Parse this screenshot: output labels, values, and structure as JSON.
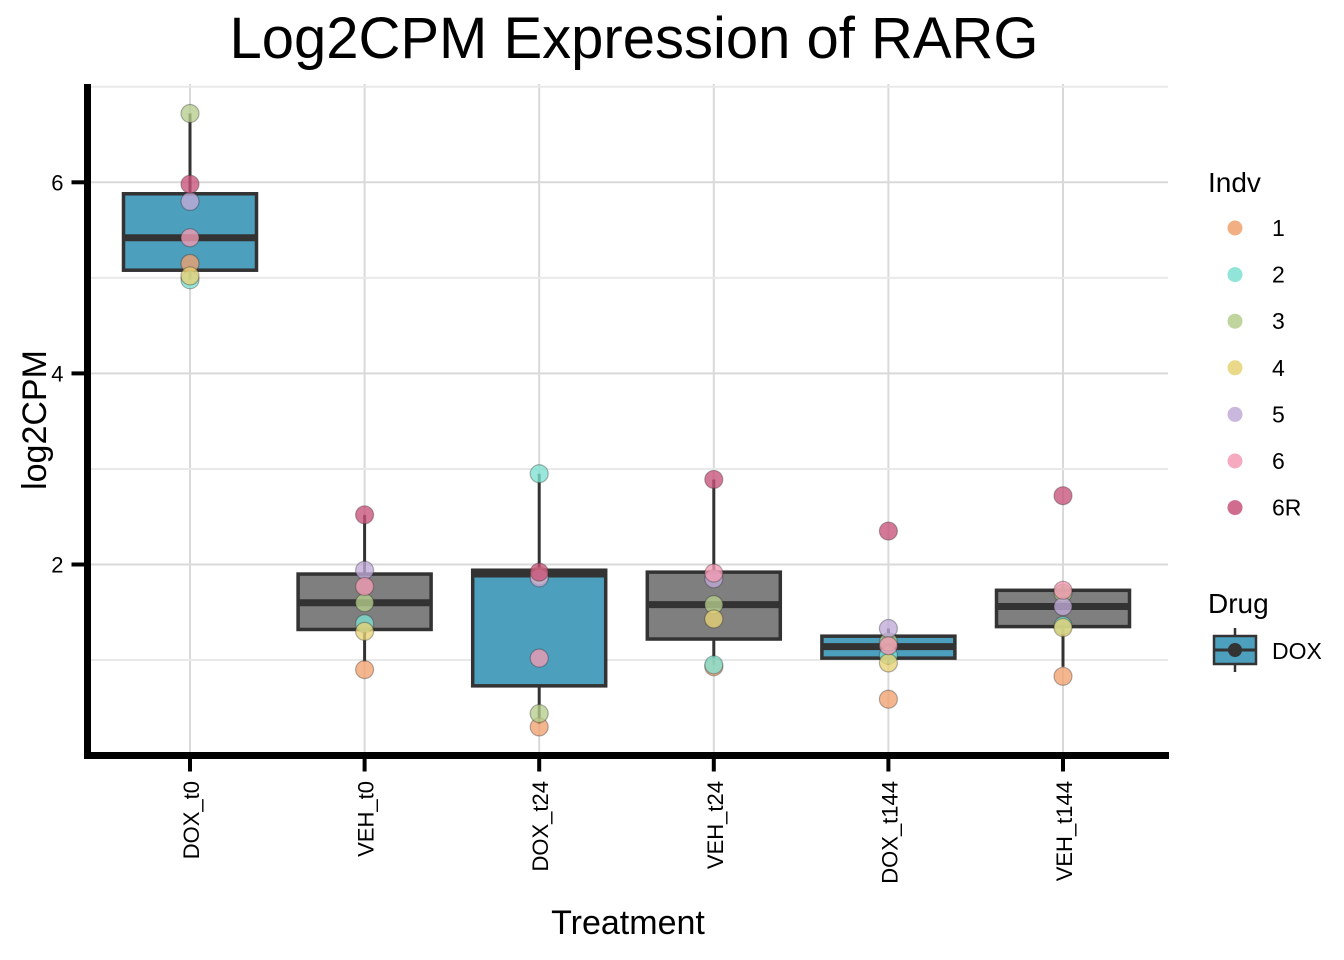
{
  "chart_data": {
    "type": "boxplot",
    "title": "Log2CPM Expression of RARG",
    "xlabel": "Treatment",
    "ylabel": "log2CPM",
    "categories": [
      "DOX_t0",
      "VEH_t0",
      "DOX_t24",
      "VEH_t24",
      "DOX_t144",
      "VEH_t144"
    ],
    "y_major_ticks": [
      2,
      4,
      6
    ],
    "y_minor_gridlines": [
      1,
      3,
      5,
      7
    ],
    "ylim": [
      0,
      7.05
    ],
    "grid": true,
    "legend_position": "right",
    "colors": {
      "box_border": "#333333",
      "grid_major": "#D9D9D9",
      "grid_minor": "#E9E9E9",
      "axis_line": "#000000",
      "drug": {
        "DOX": "#4D9FBE",
        "VEH": "#7F7F7F"
      },
      "indv": {
        "1": "#F1A16E",
        "2": "#7EE1D1",
        "3": "#B5CD8C",
        "4": "#E7D276",
        "5": "#C1AAD8",
        "6": "#F39BB4",
        "6R": "#C8527A"
      }
    },
    "boxes": [
      {
        "category": "DOX_t0",
        "drug": "DOX",
        "whisker_low": 4.98,
        "q1": 5.08,
        "median": 5.42,
        "q3": 5.88,
        "whisker_high": 6.72,
        "points": {
          "1": 5.15,
          "2": 4.98,
          "3": 6.72,
          "4": 5.02,
          "5": 5.8,
          "6": 5.42,
          "6R": 5.98
        }
      },
      {
        "category": "VEH_t0",
        "drug": "VEH",
        "whisker_low": 0.98,
        "q1": 1.32,
        "median": 1.6,
        "q3": 1.9,
        "whisker_high": 2.52,
        "points": {
          "1": 0.9,
          "2": 1.38,
          "3": 1.6,
          "4": 1.3,
          "5": 1.94,
          "6": 1.77,
          "6R": 2.52
        }
      },
      {
        "category": "DOX_t24",
        "drug": "DOX",
        "whisker_low": 0.33,
        "q1": 0.73,
        "median": 1.9,
        "q3": 1.94,
        "whisker_high": 2.95,
        "points": {
          "1": 0.3,
          "2": 2.95,
          "3": 0.44,
          "4": 1.88,
          "5": 1.86,
          "6": 1.02,
          "6R": 1.92
        }
      },
      {
        "category": "VEH_t24",
        "drug": "VEH",
        "whisker_low": 0.95,
        "q1": 1.22,
        "median": 1.58,
        "q3": 1.92,
        "whisker_high": 2.89,
        "points": {
          "1": 0.93,
          "2": 0.95,
          "3": 1.58,
          "4": 1.43,
          "5": 1.85,
          "6": 1.91,
          "6R": 2.89
        }
      },
      {
        "category": "DOX_t144",
        "drug": "DOX",
        "whisker_low": 0.95,
        "q1": 1.02,
        "median": 1.14,
        "q3": 1.25,
        "whisker_high": 1.33,
        "points": {
          "1": 0.59,
          "2": 1.05,
          "3": 1.19,
          "4": 0.97,
          "5": 1.33,
          "6": 1.15,
          "6R": 2.35
        }
      },
      {
        "category": "VEH_t144",
        "drug": "VEH",
        "whisker_low": 0.93,
        "q1": 1.35,
        "median": 1.56,
        "q3": 1.73,
        "whisker_high": 1.78,
        "points": {
          "1": 0.83,
          "2": 1.36,
          "3": 1.7,
          "4": 1.34,
          "5": 1.56,
          "6": 1.73,
          "6R": 2.72
        }
      }
    ],
    "legend": {
      "indv": {
        "title": "Indv",
        "entries": [
          "1",
          "2",
          "3",
          "4",
          "5",
          "6",
          "6R"
        ]
      },
      "drug": {
        "title": "Drug",
        "entries": [
          {
            "label": "DOX",
            "drug": "DOX"
          }
        ]
      }
    }
  }
}
